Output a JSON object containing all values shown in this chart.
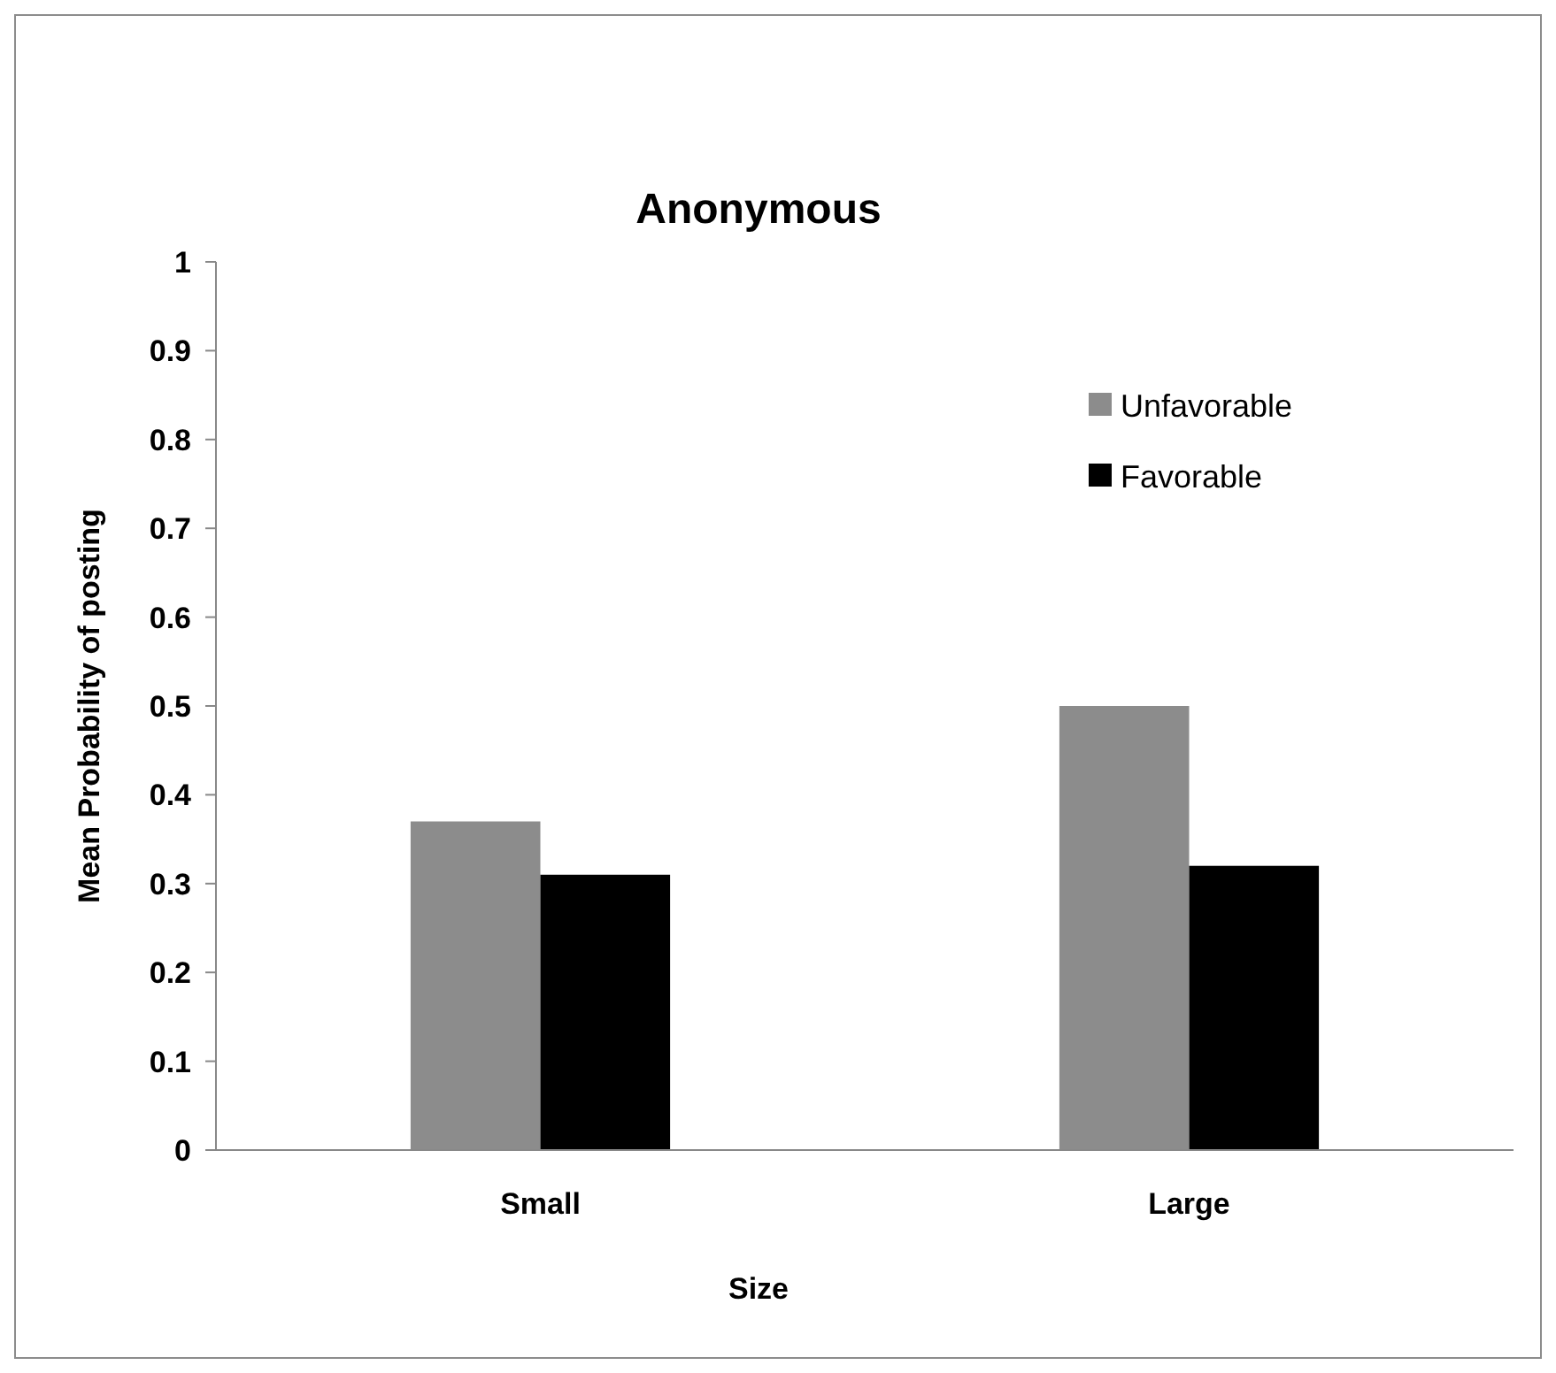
{
  "chart_data": {
    "type": "bar",
    "title": "Anonymous",
    "xlabel": "Size",
    "ylabel": "Mean Probability of posting",
    "categories": [
      "Small",
      "Large"
    ],
    "series": [
      {
        "name": "Unfavorable",
        "color": "#8c8c8c",
        "values": [
          0.37,
          0.5
        ]
      },
      {
        "name": "Favorable",
        "color": "#000000",
        "values": [
          0.31,
          0.32
        ]
      }
    ],
    "ylim": [
      0,
      1
    ],
    "yticks": [
      0,
      0.1,
      0.2,
      0.3,
      0.4,
      0.5,
      0.6,
      0.7,
      0.8,
      0.9,
      1
    ],
    "grid": false,
    "legend": "top right"
  }
}
